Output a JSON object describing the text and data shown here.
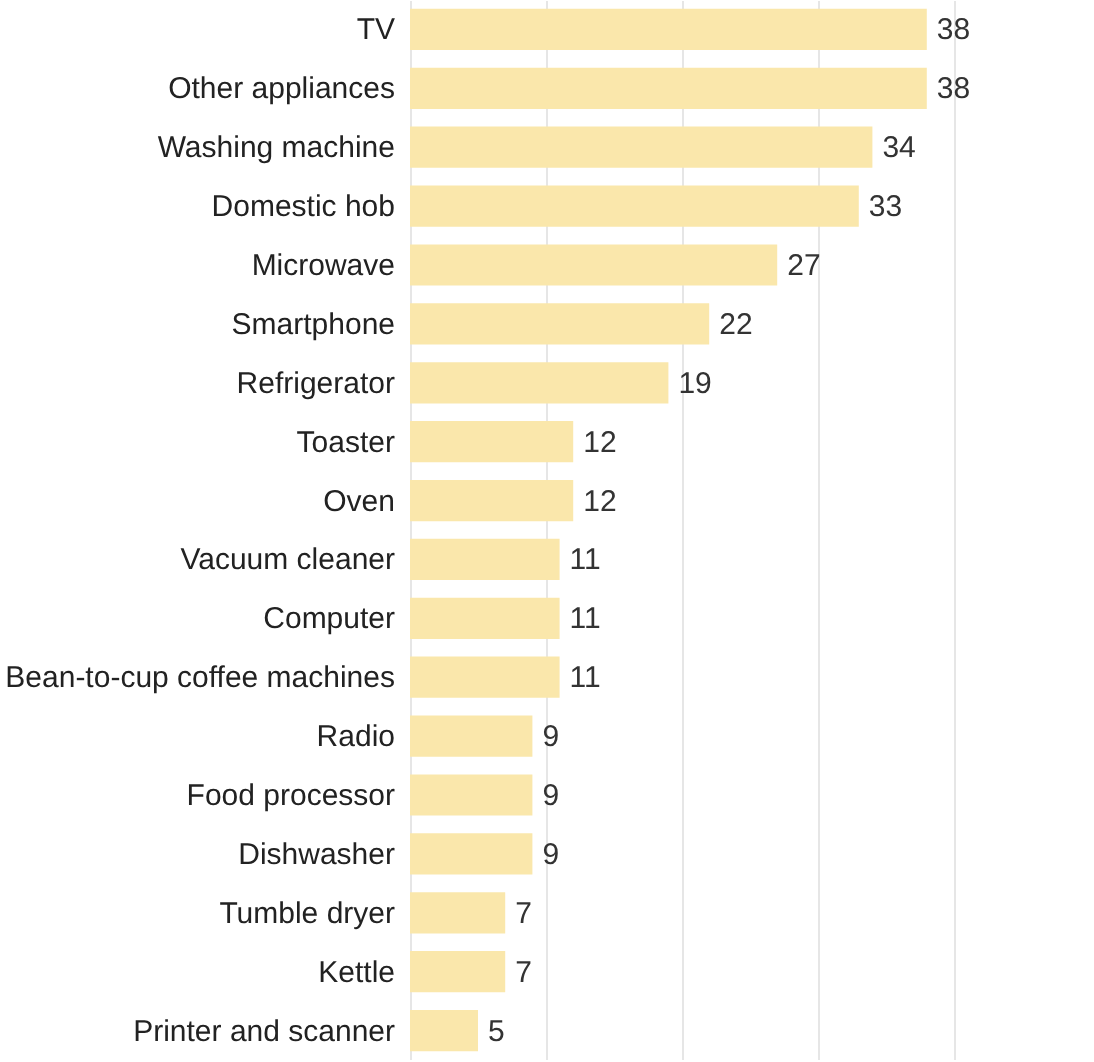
{
  "chart_data": {
    "type": "bar",
    "orientation": "horizontal",
    "categories": [
      "TV",
      "Other appliances",
      "Washing machine",
      "Domestic hob",
      "Microwave",
      "Smartphone",
      "Refrigerator",
      "Toaster",
      "Oven",
      "Vacuum cleaner",
      "Computer",
      "Bean-to-cup coffee machines",
      "Radio",
      "Food processor",
      "Dishwasher",
      "Tumble dryer",
      "Kettle",
      "Printer and scanner"
    ],
    "values": [
      38,
      38,
      34,
      33,
      27,
      22,
      19,
      12,
      12,
      11,
      11,
      11,
      9,
      9,
      9,
      7,
      7,
      5
    ],
    "color": "#fae7ab",
    "data_labels": true,
    "grid": "x",
    "xlim": [
      0,
      40
    ],
    "xticks": [
      {
        "value": 0,
        "label": null
      },
      {
        "value": 10,
        "label": null
      },
      {
        "value": 20,
        "label": null
      },
      {
        "value": 30,
        "label": null
      },
      {
        "value": 40,
        "label": null
      }
    ],
    "tick_labels": "y"
  }
}
